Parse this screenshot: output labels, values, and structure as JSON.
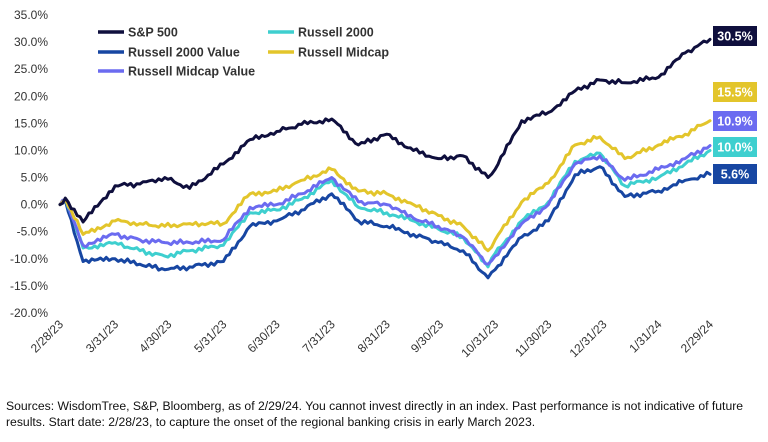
{
  "chart_data": {
    "type": "line",
    "title": "",
    "xlabel": "",
    "ylabel": "",
    "ylim": [
      -20,
      35
    ],
    "y_ticks": [
      "-20.0%",
      "-15.0%",
      "-10.0%",
      "-5.0%",
      "0.0%",
      "5.0%",
      "10.0%",
      "15.0%",
      "20.0%",
      "25.0%",
      "30.0%",
      "35.0%"
    ],
    "x_ticks": [
      "2/28/23",
      "3/31/23",
      "4/30/23",
      "5/31/23",
      "6/30/23",
      "7/31/23",
      "8/31/23",
      "9/30/23",
      "10/31/23",
      "11/30/23",
      "12/31/23",
      "1/31/24",
      "2/29/24"
    ],
    "grid": false,
    "legend_position": "top-left",
    "series": [
      {
        "name": "S&P 500",
        "color": "#0f0f3d",
        "end_label": "30.5%",
        "x": [
          "2/28/23",
          "3/3/23",
          "3/13/23",
          "3/31/23",
          "4/14/23",
          "4/28/23",
          "5/12/23",
          "5/31/23",
          "6/15/23",
          "6/30/23",
          "7/14/23",
          "7/31/23",
          "8/15/23",
          "8/31/23",
          "9/15/23",
          "9/29/23",
          "10/13/23",
          "10/27/23",
          "10/31/23",
          "11/15/23",
          "11/30/23",
          "12/15/23",
          "12/29/23",
          "1/12/24",
          "1/31/24",
          "2/15/24",
          "2/29/24"
        ],
        "y": [
          0,
          1.2,
          -3.2,
          3.5,
          3.8,
          5.0,
          3.0,
          7.5,
          12.0,
          13.5,
          14.8,
          15.8,
          11.0,
          13.0,
          10.0,
          8.5,
          9.0,
          5.0,
          6.5,
          15.5,
          17.0,
          21.0,
          23.0,
          22.5,
          23.5,
          28.0,
          30.5
        ]
      },
      {
        "name": "Russell 2000",
        "color": "#3ecfcf",
        "end_label": "10.0%",
        "x": [
          "2/28/23",
          "3/3/23",
          "3/13/23",
          "3/31/23",
          "4/14/23",
          "4/28/23",
          "5/12/23",
          "5/31/23",
          "6/15/23",
          "6/30/23",
          "7/14/23",
          "7/31/23",
          "8/15/23",
          "8/31/23",
          "9/15/23",
          "9/29/23",
          "10/13/23",
          "10/27/23",
          "10/31/23",
          "11/15/23",
          "11/30/23",
          "12/15/23",
          "12/29/23",
          "1/12/24",
          "1/31/24",
          "2/15/24",
          "2/29/24"
        ],
        "y": [
          0,
          1.0,
          -8.0,
          -7.0,
          -8.5,
          -9.5,
          -8.5,
          -7.5,
          -1.5,
          -1.0,
          1.0,
          4.5,
          -0.5,
          -1.5,
          -3.0,
          -4.5,
          -6.0,
          -11.5,
          -9.0,
          -3.0,
          0.5,
          8.0,
          9.5,
          3.5,
          5.0,
          7.5,
          10.0
        ]
      },
      {
        "name": "Russell 2000 Value",
        "color": "#1746a2",
        "end_label": "5.6%",
        "x": [
          "2/28/23",
          "3/3/23",
          "3/13/23",
          "3/31/23",
          "4/14/23",
          "4/28/23",
          "5/12/23",
          "5/31/23",
          "6/15/23",
          "6/30/23",
          "7/14/23",
          "7/31/23",
          "8/15/23",
          "8/31/23",
          "9/15/23",
          "9/29/23",
          "10/13/23",
          "10/27/23",
          "10/31/23",
          "11/15/23",
          "11/30/23",
          "12/15/23",
          "12/29/23",
          "1/12/24",
          "1/31/24",
          "2/15/24",
          "2/29/24"
        ],
        "y": [
          0,
          0.8,
          -10.5,
          -10.0,
          -11.0,
          -12.0,
          -11.5,
          -10.5,
          -4.0,
          -3.0,
          -1.0,
          2.0,
          -3.0,
          -4.0,
          -5.5,
          -7.0,
          -8.5,
          -13.5,
          -12.0,
          -6.0,
          -3.0,
          5.5,
          7.0,
          1.5,
          2.5,
          4.5,
          5.6
        ]
      },
      {
        "name": "Russell Midcap",
        "color": "#e3c52b",
        "end_label": "15.5%",
        "x": [
          "2/28/23",
          "3/3/23",
          "3/13/23",
          "3/31/23",
          "4/14/23",
          "4/28/23",
          "5/12/23",
          "5/31/23",
          "6/15/23",
          "6/30/23",
          "7/14/23",
          "7/31/23",
          "8/15/23",
          "8/31/23",
          "9/15/23",
          "9/29/23",
          "10/13/23",
          "10/27/23",
          "10/31/23",
          "11/15/23",
          "11/30/23",
          "12/15/23",
          "12/29/23",
          "1/12/24",
          "1/31/24",
          "2/15/24",
          "2/29/24"
        ],
        "y": [
          0,
          1.0,
          -5.5,
          -3.0,
          -3.5,
          -4.0,
          -3.5,
          -3.5,
          2.0,
          2.5,
          4.5,
          6.5,
          2.5,
          2.0,
          0.0,
          -2.0,
          -4.0,
          -8.5,
          -6.5,
          0.5,
          4.0,
          11.0,
          12.5,
          8.5,
          11.0,
          13.0,
          15.5
        ]
      },
      {
        "name": "Russell Midcap Value",
        "color": "#6b6bf0",
        "end_label": "10.9%",
        "x": [
          "2/28/23",
          "3/3/23",
          "3/13/23",
          "3/31/23",
          "4/14/23",
          "4/28/23",
          "5/12/23",
          "5/31/23",
          "6/15/23",
          "6/30/23",
          "7/14/23",
          "7/31/23",
          "8/15/23",
          "8/31/23",
          "9/15/23",
          "9/29/23",
          "10/13/23",
          "10/27/23",
          "10/31/23",
          "11/15/23",
          "11/30/23",
          "12/15/23",
          "12/29/23",
          "1/12/24",
          "1/31/24",
          "2/15/24",
          "2/29/24"
        ],
        "y": [
          0,
          0.8,
          -7.5,
          -5.5,
          -6.5,
          -7.0,
          -7.0,
          -6.5,
          -0.5,
          0.0,
          2.0,
          5.0,
          0.5,
          0.0,
          -2.5,
          -4.0,
          -6.0,
          -11.0,
          -9.5,
          -3.5,
          0.0,
          7.5,
          9.0,
          4.5,
          6.5,
          8.5,
          10.9
        ]
      }
    ]
  },
  "footer": {
    "source": "Sources: WisdomTree, S&P, Bloomberg, as of 2/29/24. You cannot invest directly in an index. Past performance is not indicative of future results. Start date: 2/28/23, to capture the onset of the regional banking crisis in early March 2023."
  }
}
